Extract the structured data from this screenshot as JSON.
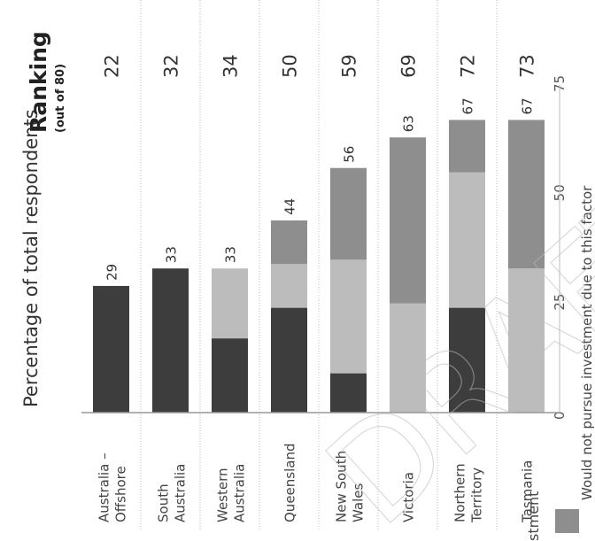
{
  "chart_data": {
    "type": "bar",
    "stacked": true,
    "orientation": "rotated",
    "title": "Percentage of total respondents",
    "ranking_header": "Ranking",
    "ranking_subheader": "(out of 80)",
    "categories": [
      [
        "Australia –",
        "Offshore"
      ],
      [
        "South",
        "Australia"
      ],
      [
        "Western",
        "Australia"
      ],
      [
        "Queensland"
      ],
      [
        "New South",
        "Wales"
      ],
      [
        "Victoria"
      ],
      [
        "Northern",
        "Territory"
      ],
      [
        "Tasmania"
      ]
    ],
    "series": [
      {
        "values": [
          29,
          33,
          17,
          24,
          9,
          0,
          24,
          0
        ],
        "color": "#3d3d3d"
      },
      {
        "values": [
          0,
          0,
          16,
          10,
          26,
          25,
          31,
          33
        ],
        "color": "#bcbcbc"
      },
      {
        "name": "Would not pursue investment due to this factor",
        "values": [
          0,
          0,
          0,
          10,
          21,
          38,
          12,
          34
        ],
        "color": "#8e8e8e"
      }
    ],
    "totals": [
      29,
      33,
      33,
      44,
      56,
      63,
      67,
      67
    ],
    "rankings": [
      22,
      32,
      34,
      50,
      59,
      69,
      72,
      73
    ],
    "axis_ticks": [
      0,
      25,
      50,
      75
    ],
    "axis_range": [
      0,
      75
    ],
    "partial_legend_text": "stment",
    "watermark": "DRAFT"
  }
}
